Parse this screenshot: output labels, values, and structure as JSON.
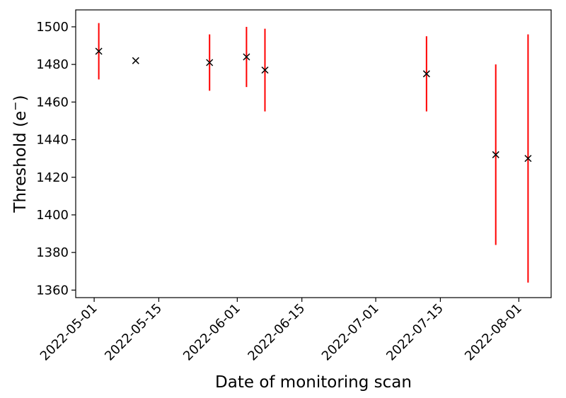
{
  "chart_data": {
    "type": "scatter",
    "title": "",
    "xlabel": "Date of monitoring scan",
    "ylabel_main": "Threshold (e",
    "ylabel_sup": "−",
    "ylabel_tail": ")",
    "xaxis_type": "date",
    "xlim": [
      "2022-04-27",
      "2022-08-08"
    ],
    "ylim": [
      1356,
      1509
    ],
    "xticks": [
      "2022-05-01",
      "2022-05-15",
      "2022-06-01",
      "2022-06-15",
      "2022-07-01",
      "2022-07-15",
      "2022-08-01"
    ],
    "yticks": [
      1360,
      1380,
      1400,
      1420,
      1440,
      1460,
      1480,
      1500
    ],
    "grid": false,
    "legend": "none",
    "marker": "x",
    "marker_color": "#000000",
    "errorbar_color": "#ff0000",
    "points": [
      {
        "date": "2022-05-02",
        "value": 1487,
        "err": 15
      },
      {
        "date": "2022-05-10",
        "value": 1482,
        "err": 0
      },
      {
        "date": "2022-05-26",
        "value": 1481,
        "err": 15
      },
      {
        "date": "2022-06-03",
        "value": 1484,
        "err": 16
      },
      {
        "date": "2022-06-07",
        "value": 1477,
        "err": 22
      },
      {
        "date": "2022-07-12",
        "value": 1475,
        "err": 20
      },
      {
        "date": "2022-07-27",
        "value": 1432,
        "err": 48
      },
      {
        "date": "2022-08-03",
        "value": 1430,
        "err": 66
      }
    ]
  }
}
